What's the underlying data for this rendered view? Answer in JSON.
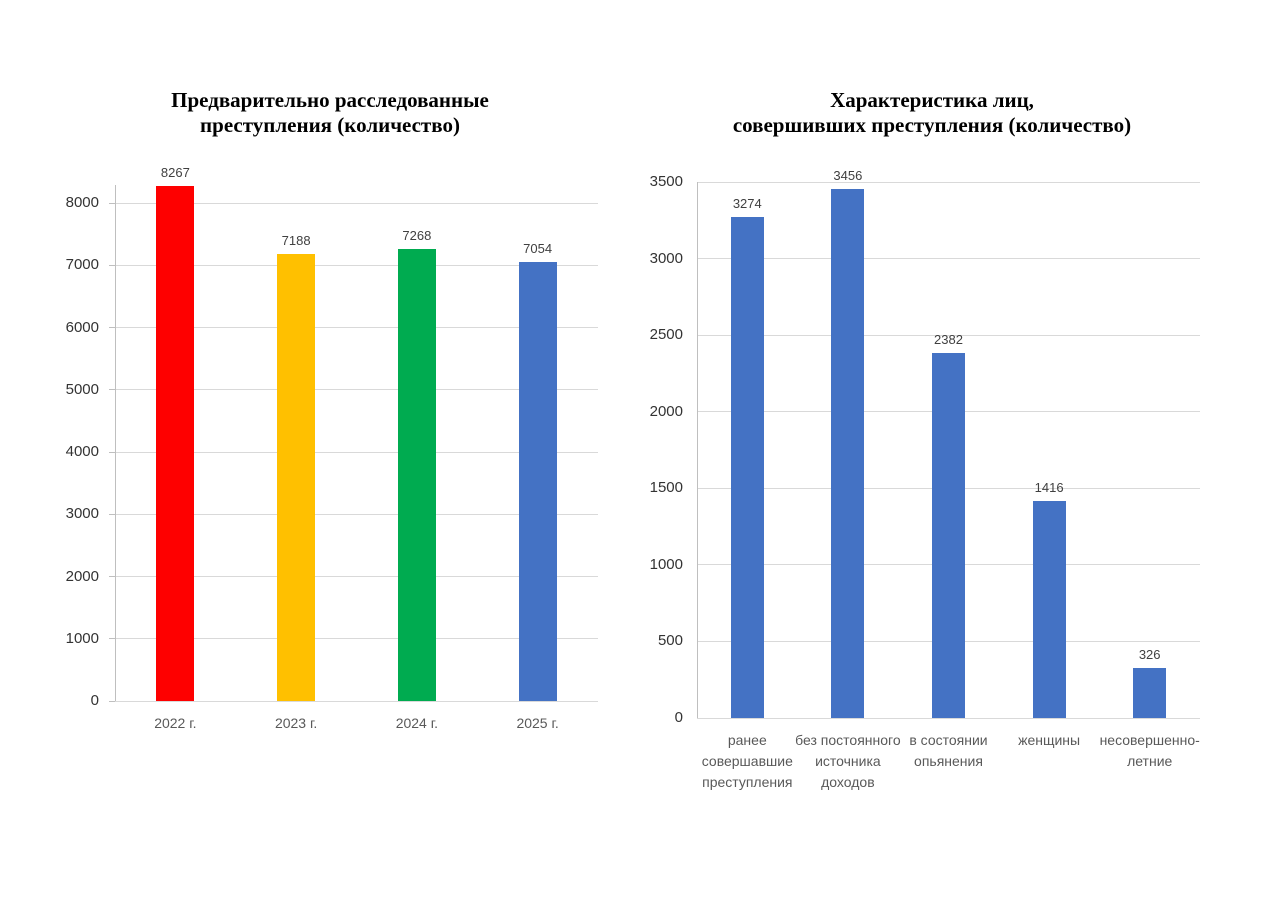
{
  "page": {
    "background": "#ffffff"
  },
  "colors": {
    "gridline": "#d9d9d9",
    "axis_line": "#bfbfbf",
    "value_label": "#404040",
    "tick_label": "#333333",
    "category_label": "#595959",
    "title": "#000000"
  },
  "chart_data": [
    {
      "type": "bar",
      "title": "Предварительно расследованные преступления (количество)",
      "title_lines": [
        "Предварительно расследованные",
        "преступления (количество)"
      ],
      "categories": [
        "2022 г.",
        "2023 г.",
        "2024 г.",
        "2025 г."
      ],
      "values": [
        8267,
        7188,
        7268,
        7054
      ],
      "data_labels": [
        "8267",
        "7188",
        "7268",
        "7054"
      ],
      "bar_colors": [
        "#fe0000",
        "#ffc000",
        "#00ab50",
        "#4472c4"
      ],
      "xlabel": "",
      "ylabel": "",
      "ylim": [
        0,
        8290
      ],
      "ytick_step": 1000,
      "ytick_labels": [
        "0",
        "1000",
        "2000",
        "3000",
        "4000",
        "5000",
        "6000",
        "7000",
        "8000"
      ],
      "grid": true,
      "legend": "none"
    },
    {
      "type": "bar",
      "title": "Характеристика лиц, совершивших преступления (количество)",
      "title_lines": [
        "Характеристика лиц,",
        "совершивших преступления (количество)"
      ],
      "categories": [
        [
          "ранее",
          "совершавшие",
          "преступления"
        ],
        [
          "без постоянного",
          "источника",
          "доходов"
        ],
        [
          "в состоянии",
          "опьянения"
        ],
        [
          "женщины"
        ],
        [
          "несовершенно-",
          "летние"
        ]
      ],
      "values": [
        3274,
        3456,
        2382,
        1416,
        326
      ],
      "data_labels": [
        "3274",
        "3456",
        "2382",
        "1416",
        "326"
      ],
      "bar_colors": [
        "#4472c4",
        "#4472c4",
        "#4472c4",
        "#4472c4",
        "#4472c4"
      ],
      "xlabel": "",
      "ylabel": "",
      "ylim": [
        0,
        3500
      ],
      "ytick_step": 500,
      "ytick_labels": [
        "0",
        "500",
        "1000",
        "1500",
        "2000",
        "2500",
        "3000",
        "3500"
      ],
      "grid": true,
      "legend": "none"
    }
  ]
}
